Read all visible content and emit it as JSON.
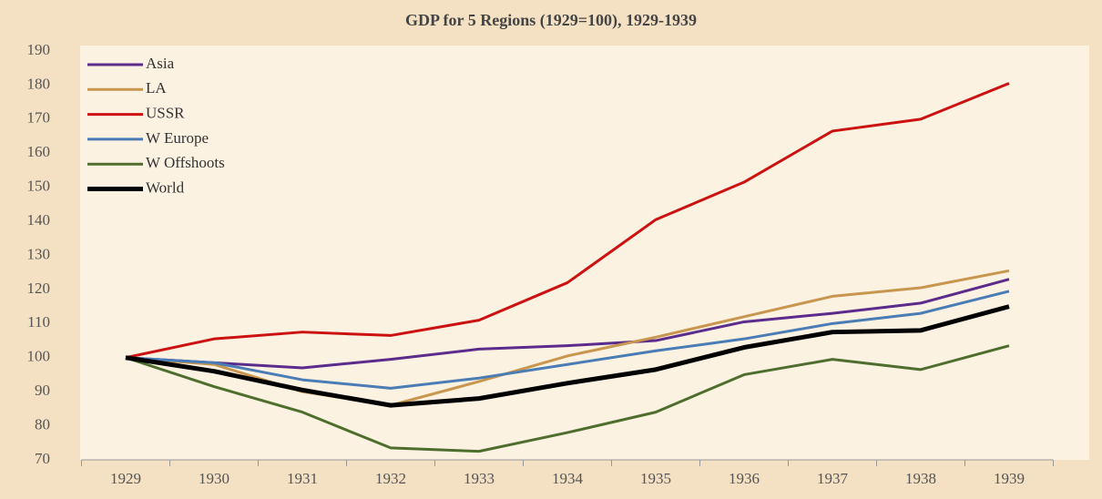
{
  "chart_data": {
    "type": "line",
    "title": "GDP for 5 Regions (1929=100), 1929-1939",
    "categories": [
      "1929",
      "1930",
      "1931",
      "1932",
      "1933",
      "1934",
      "1935",
      "1936",
      "1937",
      "1938",
      "1939"
    ],
    "series": [
      {
        "name": "Asia",
        "color": "#5b2c8c",
        "values": [
          100,
          98.5,
          97,
          99.5,
          102.5,
          103.5,
          105,
          110.5,
          113,
          116,
          123
        ]
      },
      {
        "name": "LA",
        "color": "#c8964e",
        "values": [
          100,
          98,
          90,
          86,
          93,
          100.5,
          106,
          112,
          118,
          120.5,
          125.5
        ]
      },
      {
        "name": "USSR",
        "color": "#cc1111",
        "values": [
          100,
          105.5,
          107.5,
          106.5,
          111,
          122,
          140.5,
          151.5,
          166.5,
          170,
          180.5
        ]
      },
      {
        "name": "W Europe",
        "color": "#4a7db5",
        "values": [
          100,
          98.5,
          93.5,
          91,
          94,
          98,
          102,
          105.5,
          110,
          113,
          119.5
        ]
      },
      {
        "name": "W Offshoots",
        "color": "#4e6e2e",
        "values": [
          100,
          91.5,
          84,
          73.5,
          72.5,
          78,
          84,
          95,
          99.5,
          96.5,
          103.5
        ]
      },
      {
        "name": "World",
        "color": "#000000",
        "values": [
          100,
          96,
          90.5,
          86,
          88,
          92.5,
          96.5,
          103,
          107.5,
          108,
          115
        ]
      }
    ],
    "ylim": [
      70,
      190
    ],
    "yticks": [
      70,
      80,
      90,
      100,
      110,
      120,
      130,
      140,
      150,
      160,
      170,
      180,
      190
    ],
    "legend": "upper left"
  }
}
